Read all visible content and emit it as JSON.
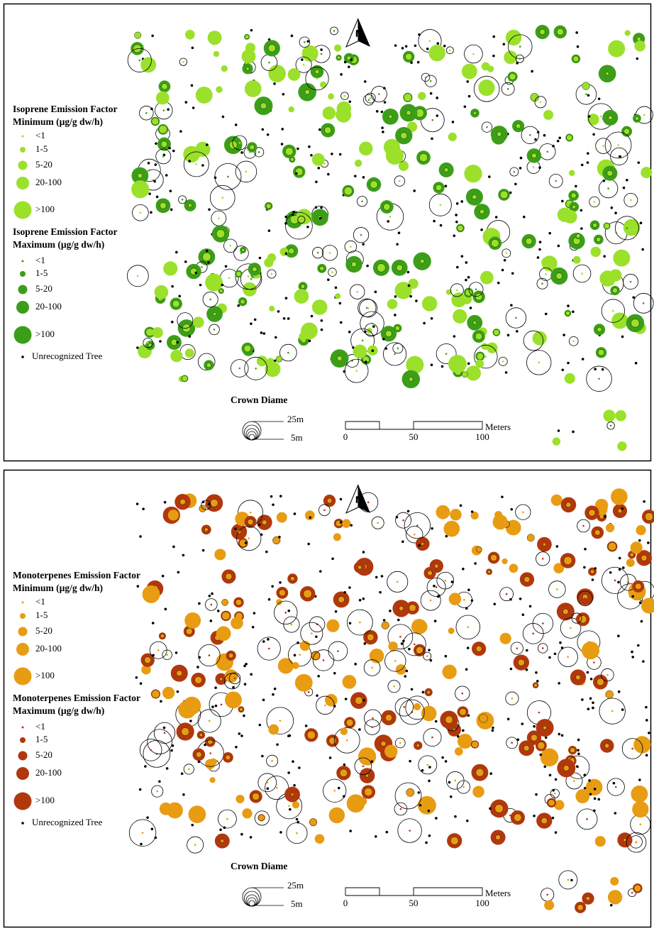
{
  "panels": [
    {
      "north": "N",
      "legend": {
        "minimum": {
          "title": "Isoprene Emission Factor",
          "subtitle": "Minimum (µg/g dw/h)",
          "color": "#9be02a",
          "classes": [
            "<1",
            "1-5",
            "5-20",
            "20-100",
            ">100"
          ]
        },
        "maximum": {
          "title": "Isoprene Emission Factor",
          "subtitle": "Maximum (µg/g dw/h)",
          "color": "#3c9e18",
          "classes": [
            "<1",
            "1-5",
            "5-20",
            "20-100",
            ">100"
          ]
        },
        "unrecognized": "Unrecognized Tree"
      },
      "crown": {
        "title": "Crown Diame",
        "large": "25m",
        "small": "5m"
      },
      "scale": {
        "unit": "Meters",
        "ticks": [
          0,
          50,
          100
        ]
      }
    },
    {
      "north": "N",
      "legend": {
        "minimum": {
          "title": "Monoterpenes Emission Factor",
          "subtitle": "Minimum (µg/g dw/h)",
          "color": "#e89c12",
          "classes": [
            "<1",
            "1-5",
            "5-20",
            "20-100",
            ">100"
          ]
        },
        "maximum": {
          "title": "Monoterpenes Emission Factor",
          "subtitle": "Maximum (µg/g dw/h)",
          "color": "#b0380c",
          "classes": [
            "<1",
            "1-5",
            "5-20",
            "20-100",
            ">100"
          ]
        },
        "unrecognized": "Unrecognized Tree"
      },
      "crown": {
        "title": "Crown Diame",
        "large": "25m",
        "small": "5m"
      },
      "scale": {
        "unit": "Meters",
        "ticks": [
          0,
          50,
          100
        ]
      }
    }
  ]
}
